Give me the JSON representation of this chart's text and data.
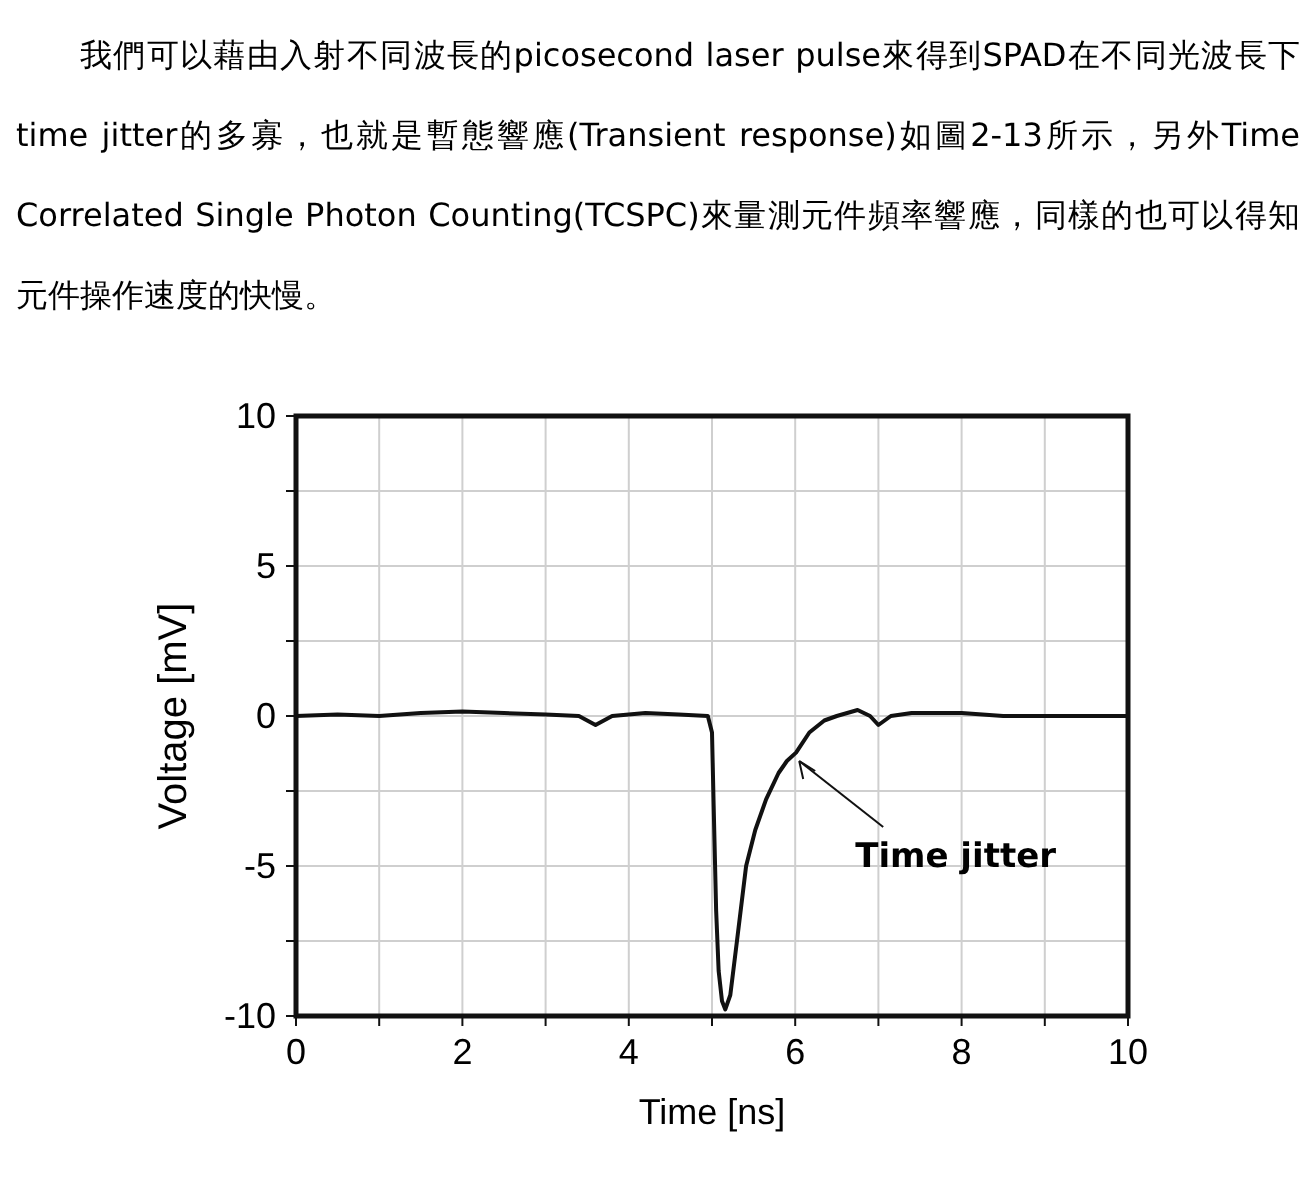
{
  "chart_data": {
    "type": "line",
    "xlabel": "Time [ns]",
    "ylabel": "Voltage [mV]",
    "annotations": [
      "我們可以藉由入射不同波長的picosecond laser pulse來得到SPAD在不同光波長下time jitter的多寡，也就是暫態響應(Transient response)如圖2-13所示，另外Time Correlated Single Photon Counting(TCSPC)來量測元件頻率響應，同樣的也可以得知元件操作速度的快慢。",
      {
        "text": "Time jitter",
        "x": 6.0,
        "y": -1.3
      }
    ],
    "xlim": [
      0,
      10
    ],
    "ylim": [
      -10,
      10
    ],
    "xticks": [
      0,
      {
        "value": 1,
        "label": null
      },
      2,
      {
        "value": 3,
        "label": null
      },
      4,
      {
        "value": 5,
        "label": null
      },
      6,
      {
        "value": 7,
        "label": null
      },
      8,
      {
        "value": 9,
        "label": null
      },
      10
    ],
    "yticks": [
      -10,
      {
        "value": -7.5,
        "label": null
      },
      -5,
      {
        "value": -2.5,
        "label": null
      },
      0,
      {
        "value": 2.5,
        "label": null
      },
      5,
      {
        "value": 7.5,
        "label": null
      },
      10
    ],
    "grid": true,
    "line_style": "solid",
    "marker": "none",
    "series": [
      {
        "color": "#111111",
        "x": [
          0,
          0.5,
          1,
          1.5,
          2,
          2.5,
          3,
          3.4,
          3.6,
          3.8,
          4.2,
          4.6,
          4.95,
          5.0,
          5.02,
          5.05,
          5.08,
          5.12,
          5.16,
          5.22,
          5.3,
          5.41,
          5.52,
          5.65,
          5.8,
          5.9,
          6.01,
          6.17,
          6.35,
          6.5,
          6.75,
          6.9,
          7.0,
          7.15,
          7.4,
          8,
          8.5,
          9,
          9.5,
          10
        ],
        "values": [
          0,
          0.05,
          0,
          0.1,
          0.15,
          0.1,
          0.05,
          0,
          -0.3,
          0,
          0.1,
          0.05,
          0,
          -0.55,
          -3,
          -6.5,
          -8.5,
          -9.5,
          -9.78,
          -9.3,
          -7.5,
          -5,
          -3.8,
          -2.78,
          -1.9,
          -1.5,
          -1.22,
          -0.55,
          -0.15,
          0,
          0.2,
          0,
          -0.3,
          0,
          0.1,
          0.1,
          0,
          0,
          0,
          0
        ]
      }
    ]
  }
}
